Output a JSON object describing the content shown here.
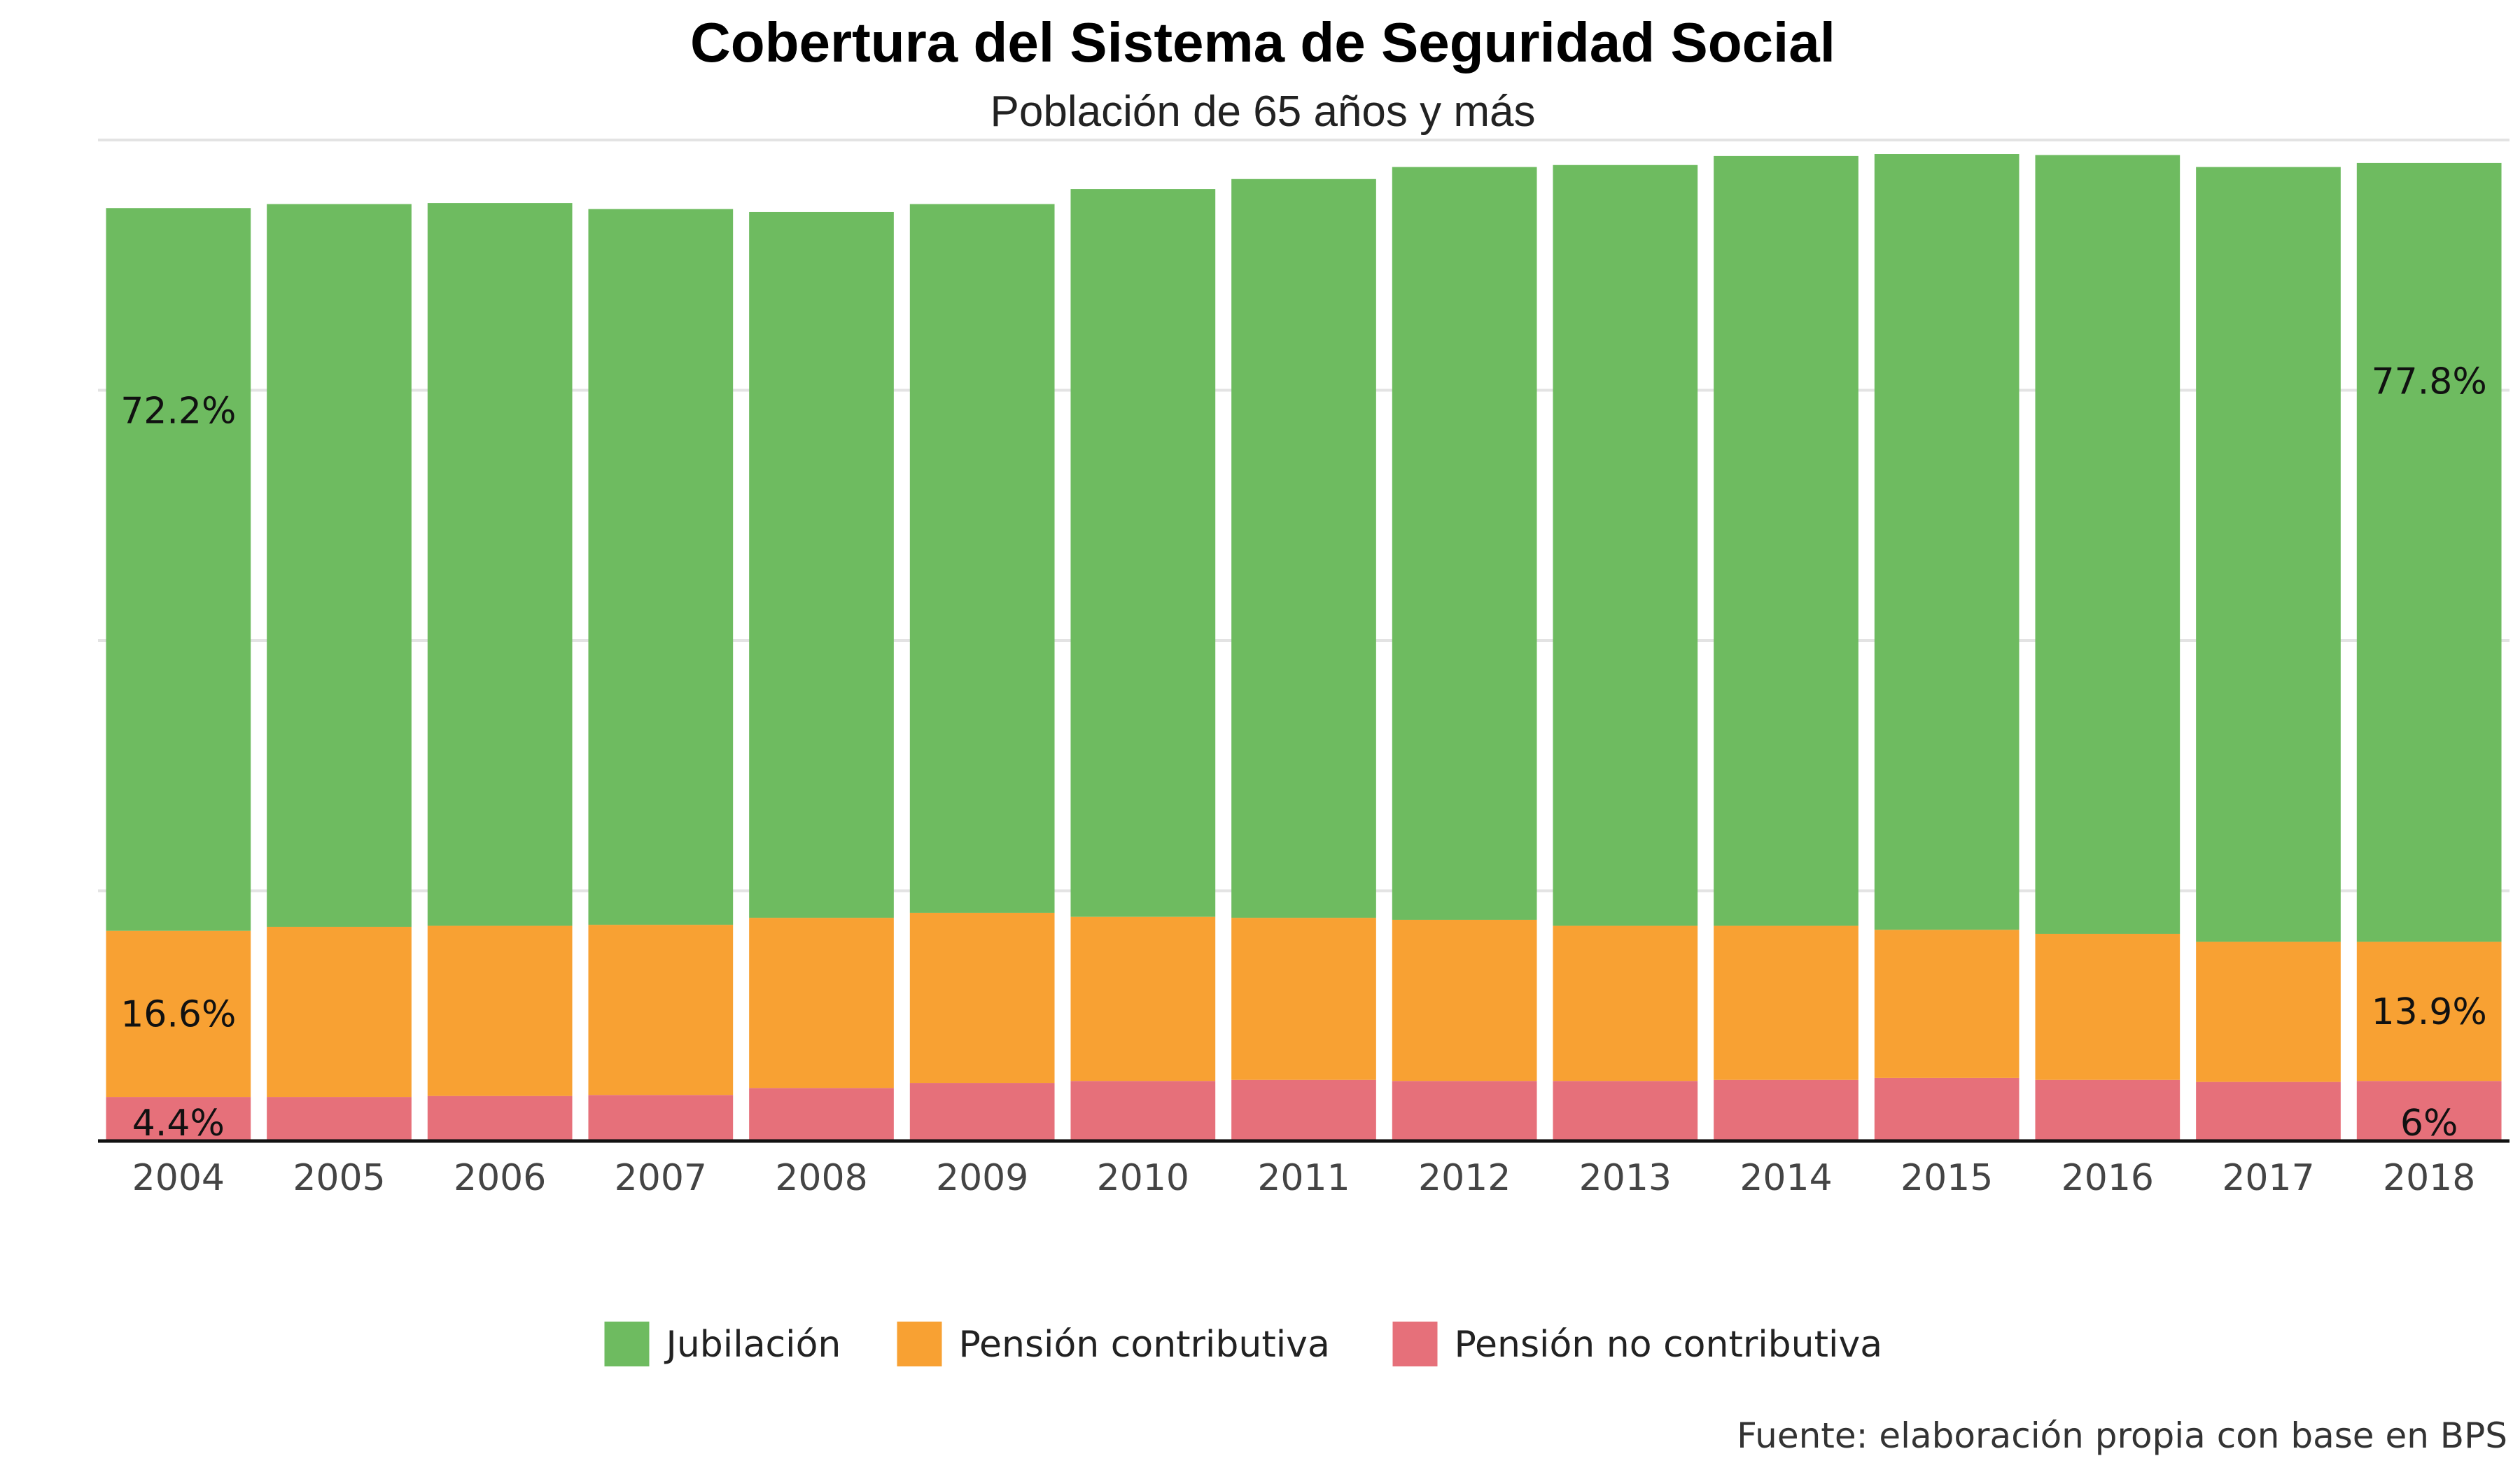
{
  "chart_data": {
    "type": "bar",
    "stacked": true,
    "title": "Cobertura del Sistema de Seguridad Social",
    "subtitle": "Población de 65 años y más",
    "caption": "Fuente: elaboración propia con base en BPS",
    "xlabel": "",
    "ylabel": "",
    "ylim": [
      0,
      100
    ],
    "grid": true,
    "legend_position": "bottom",
    "categories": [
      "2004",
      "2005",
      "2006",
      "2007",
      "2008",
      "2009",
      "2010",
      "2011",
      "2012",
      "2013",
      "2014",
      "2015",
      "2016",
      "2017",
      "2018"
    ],
    "series": [
      {
        "name": "Pensión no contributiva",
        "color": "#E6707A",
        "values": [
          4.4,
          4.4,
          4.5,
          4.6,
          5.3,
          5.8,
          6.0,
          6.1,
          6.0,
          6.0,
          6.1,
          6.3,
          6.1,
          5.9,
          6.0
        ],
        "labels": [
          "4.4%",
          "",
          "",
          "",
          "",
          "",
          "",
          "",
          "",
          "",
          "",
          "",
          "",
          "",
          "6%"
        ]
      },
      {
        "name": "Pensión contributiva",
        "color": "#F8A133",
        "values": [
          16.6,
          17.0,
          17.0,
          17.0,
          17.0,
          17.0,
          16.4,
          16.2,
          16.1,
          15.5,
          15.4,
          14.8,
          14.6,
          14.0,
          13.9
        ],
        "labels": [
          "16.6%",
          "",
          "",
          "",
          "",
          "",
          "",
          "",
          "",
          "",
          "",
          "",
          "",
          "",
          "13.9%"
        ]
      },
      {
        "name": "Jubilación",
        "color": "#6EBB60",
        "values": [
          72.2,
          72.2,
          72.2,
          71.5,
          70.5,
          70.8,
          72.7,
          73.8,
          75.2,
          76.0,
          76.9,
          77.5,
          77.8,
          77.4,
          77.8
        ],
        "labels": [
          "72.2%",
          "",
          "",
          "",
          "",
          "",
          "",
          "",
          "",
          "",
          "",
          "",
          "",
          "",
          "77.8%"
        ]
      }
    ],
    "legend_order": [
      "Jubilación",
      "Pensión contributiva",
      "Pensión no contributiva"
    ]
  }
}
